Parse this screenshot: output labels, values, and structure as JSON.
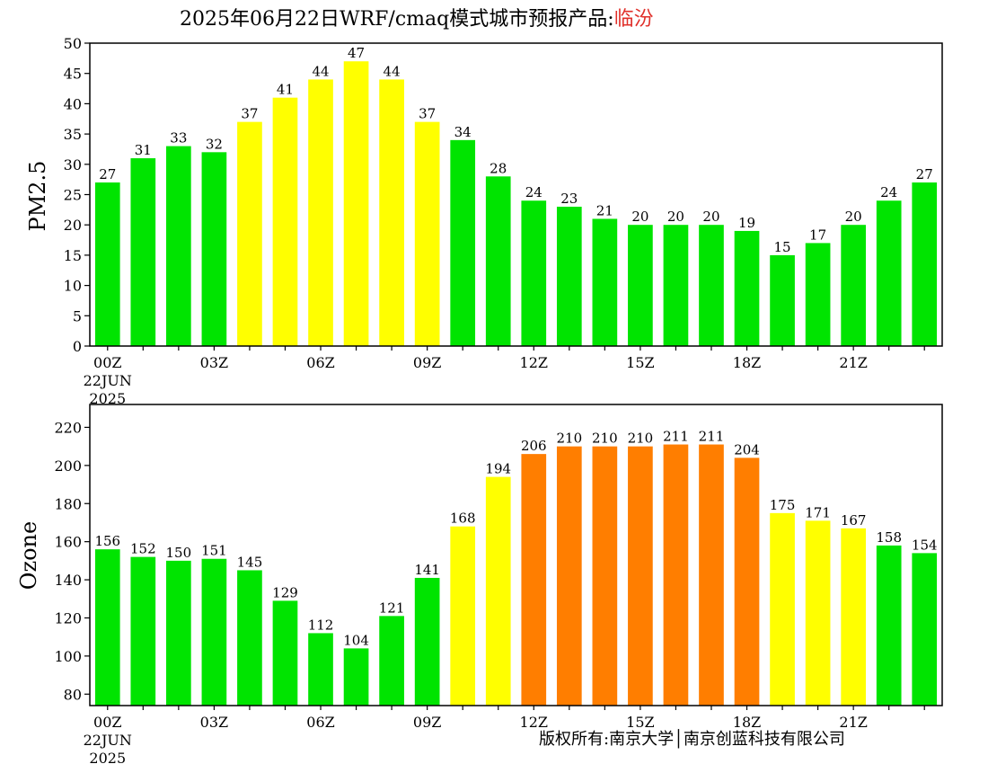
{
  "header": {
    "title": "2025年06月22日WRF/cmaq模式城市预报产品:",
    "city": "临汾"
  },
  "footer": {
    "copyright": "版权所有:南京大学│南京创蓝科技有限公司"
  },
  "colors": {
    "green": "#00e400",
    "yellow": "#ffff00",
    "orange": "#ff7e00"
  },
  "chart_data": [
    {
      "type": "bar",
      "ylabel": "PM2.5",
      "ylim": [
        0,
        50
      ],
      "yticks": [
        0,
        5,
        10,
        15,
        20,
        25,
        30,
        35,
        40,
        45,
        50
      ],
      "xtick_labels": [
        {
          "hour": 0,
          "label": "00Z",
          "sub": [
            "22JUN",
            "2025"
          ]
        },
        {
          "hour": 3,
          "label": "03Z"
        },
        {
          "hour": 6,
          "label": "06Z"
        },
        {
          "hour": 9,
          "label": "09Z"
        },
        {
          "hour": 12,
          "label": "12Z"
        },
        {
          "hour": 15,
          "label": "15Z"
        },
        {
          "hour": 18,
          "label": "18Z"
        },
        {
          "hour": 21,
          "label": "21Z"
        }
      ],
      "values": [
        27,
        31,
        33,
        32,
        37,
        41,
        44,
        47,
        44,
        37,
        34,
        28,
        24,
        23,
        21,
        20,
        20,
        20,
        19,
        15,
        17,
        20,
        24,
        27
      ],
      "bar_colors": [
        "green",
        "green",
        "green",
        "green",
        "yellow",
        "yellow",
        "yellow",
        "yellow",
        "yellow",
        "yellow",
        "green",
        "green",
        "green",
        "green",
        "green",
        "green",
        "green",
        "green",
        "green",
        "green",
        "green",
        "green",
        "green",
        "green"
      ]
    },
    {
      "type": "bar",
      "ylabel": "Ozone",
      "ylim": [
        74,
        232
      ],
      "yticks": [
        80,
        100,
        120,
        140,
        160,
        180,
        200,
        220
      ],
      "xtick_labels": [
        {
          "hour": 0,
          "label": "00Z",
          "sub": [
            "22JUN",
            "2025"
          ]
        },
        {
          "hour": 3,
          "label": "03Z"
        },
        {
          "hour": 6,
          "label": "06Z"
        },
        {
          "hour": 9,
          "label": "09Z"
        },
        {
          "hour": 12,
          "label": "12Z"
        },
        {
          "hour": 15,
          "label": "15Z"
        },
        {
          "hour": 18,
          "label": "18Z"
        },
        {
          "hour": 21,
          "label": "21Z"
        }
      ],
      "values": [
        156,
        152,
        150,
        151,
        145,
        129,
        112,
        104,
        121,
        141,
        168,
        194,
        206,
        210,
        210,
        210,
        211,
        211,
        204,
        175,
        171,
        167,
        158,
        154
      ],
      "bar_colors": [
        "green",
        "green",
        "green",
        "green",
        "green",
        "green",
        "green",
        "green",
        "green",
        "green",
        "yellow",
        "yellow",
        "orange",
        "orange",
        "orange",
        "orange",
        "orange",
        "orange",
        "orange",
        "yellow",
        "yellow",
        "yellow",
        "green",
        "green"
      ]
    }
  ]
}
